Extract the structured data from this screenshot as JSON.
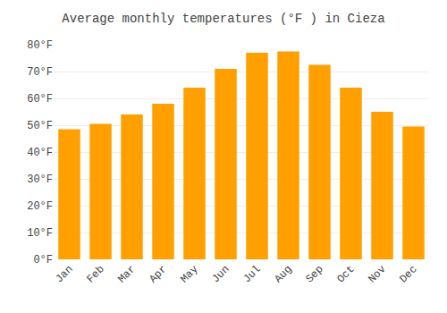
{
  "chart_data": {
    "type": "bar",
    "title": "Average monthly temperatures (°F ) in Cieza",
    "categories": [
      "Jan",
      "Feb",
      "Mar",
      "Apr",
      "May",
      "Jun",
      "Jul",
      "Aug",
      "Sep",
      "Oct",
      "Nov",
      "Dec"
    ],
    "values": [
      48.5,
      50.5,
      54.0,
      58.0,
      64.0,
      71.0,
      77.0,
      77.5,
      72.5,
      64.0,
      55.0,
      49.5
    ],
    "color": "#FFA000",
    "ylim": [
      0,
      80
    ],
    "yticks": [
      {
        "value": 0,
        "label": "0°F"
      },
      {
        "value": 10,
        "label": "10°F"
      },
      {
        "value": 20,
        "label": "20°F"
      },
      {
        "value": 30,
        "label": "30°F"
      },
      {
        "value": 40,
        "label": "40°F"
      },
      {
        "value": 50,
        "label": "50°F"
      },
      {
        "value": 60,
        "label": "60°F"
      },
      {
        "value": 70,
        "label": "70°F"
      },
      {
        "value": 80,
        "label": "80°F"
      }
    ],
    "grid": true
  }
}
